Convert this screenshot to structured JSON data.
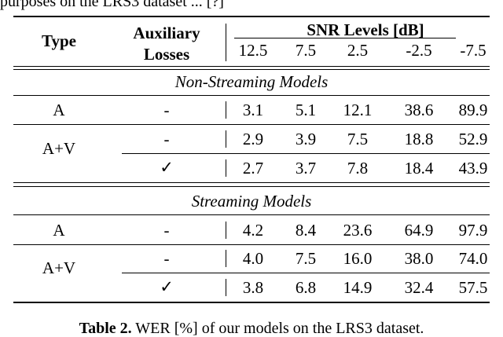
{
  "top_fragment": "purposes on the LRS3 dataset ... [?]",
  "header": {
    "type": "Type",
    "aux1": "Auxiliary",
    "aux2": "Losses",
    "snr_title": "SNR Levels [dB]",
    "snr_levels": [
      "12.5",
      "7.5",
      "2.5",
      "-2.5",
      "-7.5"
    ]
  },
  "sections": [
    {
      "title": "Non-Streaming Models",
      "rows": [
        {
          "type": "A",
          "aux": "-",
          "values": [
            "3.1",
            "5.1",
            "12.1",
            "38.6",
            "89.9"
          ]
        },
        {
          "type": "A+V",
          "aux": "-",
          "values": [
            "2.9",
            "3.9",
            "7.5",
            "18.8",
            "52.9"
          ]
        },
        {
          "type": "",
          "aux": "✓",
          "values": [
            "2.7",
            "3.7",
            "7.8",
            "18.4",
            "43.9"
          ]
        }
      ]
    },
    {
      "title": "Streaming Models",
      "rows": [
        {
          "type": "A",
          "aux": "-",
          "values": [
            "4.2",
            "8.4",
            "23.6",
            "64.9",
            "97.9"
          ]
        },
        {
          "type": "A+V",
          "aux": "-",
          "values": [
            "4.0",
            "7.5",
            "16.0",
            "38.0",
            "74.0"
          ]
        },
        {
          "type": "",
          "aux": "✓",
          "values": [
            "3.8",
            "6.8",
            "14.9",
            "32.4",
            "57.5"
          ]
        }
      ]
    }
  ],
  "caption_label": "Table 2.",
  "caption_text": "WER [%] of our models on the LRS3 dataset."
}
